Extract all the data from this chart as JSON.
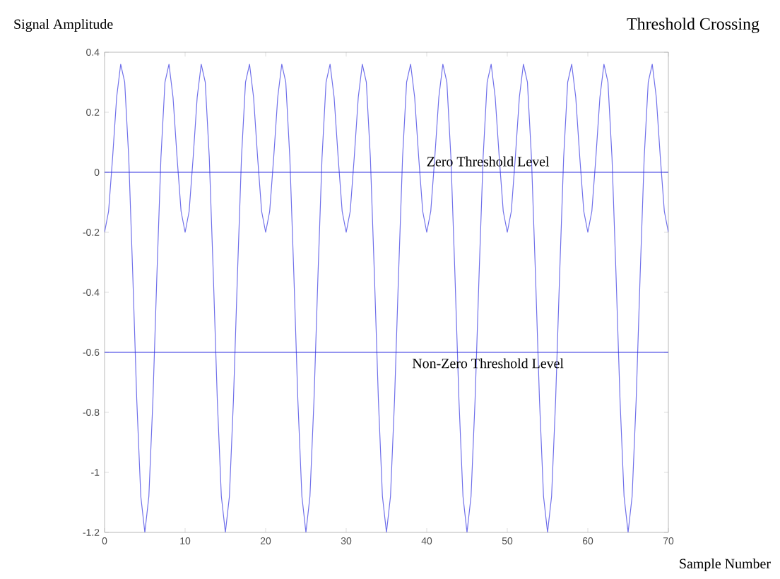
{
  "chart_data": {
    "type": "line",
    "title": "Threshold Crossing",
    "xlabel": "Sample Number",
    "ylabel": "Signal Amplitude",
    "xlim": [
      0,
      70
    ],
    "ylim": [
      -1.2,
      0.4
    ],
    "xticks": [
      0,
      10,
      20,
      30,
      40,
      50,
      60,
      70
    ],
    "yticks": [
      -1.2,
      -1,
      -0.8,
      -0.6,
      -0.4,
      -0.2,
      0,
      0.2,
      0.4
    ],
    "grid": false,
    "ref_lines": [
      {
        "axis": "y",
        "value": 0,
        "label": "Zero Threshold Level",
        "color": "#2a2ae0"
      },
      {
        "axis": "y",
        "value": -0.6,
        "label": "Non-Zero Threshold Level",
        "color": "#2a2ae0"
      }
    ],
    "series": [
      {
        "color": "#7070ea",
        "x": [
          0,
          0.5,
          1,
          1.5,
          2,
          2.5,
          3,
          3.5,
          4,
          4.5,
          5,
          5.5,
          6,
          6.5,
          7,
          7.5,
          8,
          8.5,
          9,
          9.5,
          10,
          10.5,
          11,
          11.5,
          12,
          12.5,
          13,
          13.5,
          14,
          14.5,
          15,
          15.5,
          16,
          16.5,
          17,
          17.5,
          18,
          18.5,
          19,
          19.5,
          20,
          20.5,
          21,
          21.5,
          22,
          22.5,
          23,
          23.5,
          24,
          24.5,
          25,
          25.5,
          26,
          26.5,
          27,
          27.5,
          28,
          28.5,
          29,
          29.5,
          30,
          30.5,
          31,
          31.5,
          32,
          32.5,
          33,
          33.5,
          34,
          34.5,
          35,
          35.5,
          36,
          36.5,
          37,
          37.5,
          38,
          38.5,
          39,
          39.5,
          40,
          40.5,
          41,
          41.5,
          42,
          42.5,
          43,
          43.5,
          44,
          44.5,
          45,
          45.5,
          46,
          46.5,
          47,
          47.5,
          48,
          48.5,
          49,
          49.5,
          50,
          50.5,
          51,
          51.5,
          52,
          52.5,
          53,
          53.5,
          54,
          54.5,
          55,
          55.5,
          56,
          56.5,
          57,
          57.5,
          58,
          58.5,
          59,
          59.5,
          60,
          60.5,
          61,
          61.5,
          62,
          62.5,
          63,
          63.5,
          64,
          64.5,
          65,
          65.5,
          66,
          66.5,
          67,
          67.5,
          68,
          68.5,
          69,
          69.5,
          70
        ],
        "values": [
          -0.2,
          -0.13,
          0.05,
          0.25,
          0.36,
          0.3,
          0.05,
          -0.34,
          -0.76,
          -1.08,
          -1.2,
          -1.08,
          -0.76,
          -0.34,
          0.05,
          0.3,
          0.36,
          0.25,
          0.05,
          -0.13,
          -0.2,
          -0.13,
          0.05,
          0.25,
          0.36,
          0.3,
          0.05,
          -0.34,
          -0.76,
          -1.08,
          -1.2,
          -1.08,
          -0.76,
          -0.34,
          0.05,
          0.3,
          0.36,
          0.25,
          0.05,
          -0.13,
          -0.2,
          -0.13,
          0.05,
          0.25,
          0.36,
          0.3,
          0.05,
          -0.34,
          -0.76,
          -1.08,
          -1.2,
          -1.08,
          -0.76,
          -0.34,
          0.05,
          0.3,
          0.36,
          0.25,
          0.05,
          -0.13,
          -0.2,
          -0.13,
          0.05,
          0.25,
          0.36,
          0.3,
          0.05,
          -0.34,
          -0.76,
          -1.08,
          -1.2,
          -1.08,
          -0.76,
          -0.34,
          0.05,
          0.3,
          0.36,
          0.25,
          0.05,
          -0.13,
          -0.2,
          -0.13,
          0.05,
          0.25,
          0.36,
          0.3,
          0.05,
          -0.34,
          -0.76,
          -1.08,
          -1.2,
          -1.08,
          -0.76,
          -0.34,
          0.05,
          0.3,
          0.36,
          0.25,
          0.05,
          -0.13,
          -0.2,
          -0.13,
          0.05,
          0.25,
          0.36,
          0.3,
          0.05,
          -0.34,
          -0.76,
          -1.08,
          -1.2,
          -1.08,
          -0.76,
          -0.34,
          0.05,
          0.3,
          0.36,
          0.25,
          0.05,
          -0.13,
          -0.2,
          -0.13,
          0.05,
          0.25,
          0.36,
          0.3,
          0.05,
          -0.34,
          -0.76,
          -1.08,
          -1.2,
          -1.08,
          -0.76,
          -0.34,
          0.05,
          0.3,
          0.36,
          0.25,
          0.05,
          -0.13,
          -0.2
        ]
      }
    ]
  }
}
